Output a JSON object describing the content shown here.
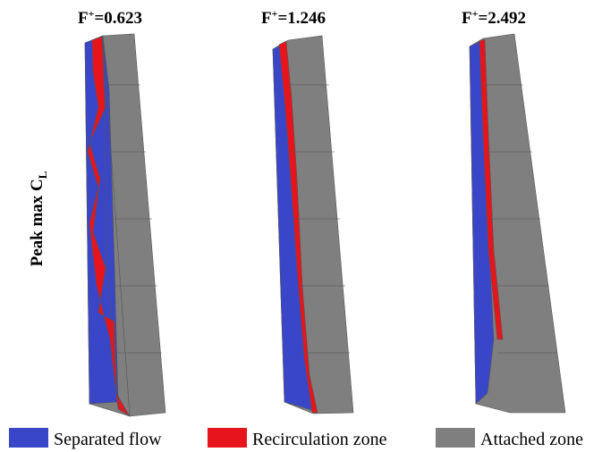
{
  "panels": [
    {
      "label_base": "F",
      "label_sup": "+",
      "label_rest": "=0.623"
    },
    {
      "label_base": "F",
      "label_sup": "+",
      "label_rest": "=1.246"
    },
    {
      "label_base": "F",
      "label_sup": "+",
      "label_rest": "=2.492"
    }
  ],
  "row_label": {
    "base": "Peak max C",
    "sub": "L"
  },
  "legend": [
    {
      "label": "Separated flow",
      "color": "#3a46c8"
    },
    {
      "label": "Recirculation zone",
      "color": "#e8141c"
    },
    {
      "label": "Attached zone",
      "color": "#7f7f7f"
    }
  ]
}
